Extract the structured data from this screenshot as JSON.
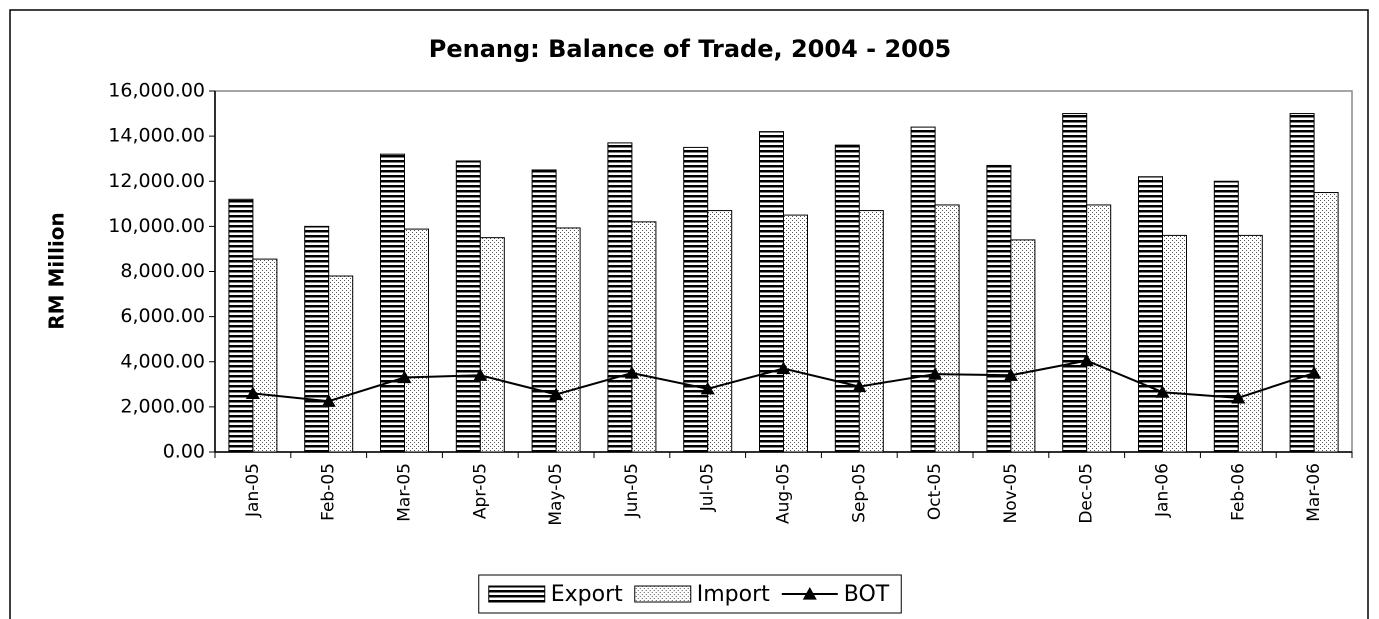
{
  "chart_data": {
    "type": "bar",
    "title": "Penang: Balance of Trade, 2004 - 2005",
    "y_label": "RM Million",
    "categories": [
      "Jan-05",
      "Feb-05",
      "Mar-05",
      "Apr-05",
      "May-05",
      "Jun-05",
      "Jul-05",
      "Aug-05",
      "Sep-05",
      "Oct-05",
      "Nov-05",
      "Dec-05",
      "Jan-06",
      "Feb-06",
      "Mar-06"
    ],
    "series": [
      {
        "name": "Export",
        "type": "bar",
        "color": "#000000",
        "values": [
          11200,
          10000,
          13200,
          12900,
          12500,
          13700,
          13500,
          14200,
          13600,
          14400,
          12700,
          15000,
          12200,
          12000,
          15000
        ]
      },
      {
        "name": "Import",
        "type": "bar",
        "color": "#000000",
        "values": [
          8550,
          7800,
          9880,
          9500,
          9930,
          10200,
          10700,
          10500,
          10700,
          10950,
          9400,
          10950,
          9600,
          9600,
          11500
        ]
      },
      {
        "name": "BOT",
        "type": "line",
        "color": "#000000",
        "values": [
          2600,
          2250,
          3300,
          3400,
          2550,
          3500,
          2800,
          3700,
          2900,
          3450,
          3400,
          4050,
          2650,
          2400,
          3500
        ]
      }
    ],
    "ylim": [
      0,
      16000
    ],
    "yticks": [
      {
        "value": 0,
        "label": "0.00"
      },
      {
        "value": 2000,
        "label": "2,000.00"
      },
      {
        "value": 4000,
        "label": "4,000.00"
      },
      {
        "value": 6000,
        "label": "6,000.00"
      },
      {
        "value": 8000,
        "label": "8,000.00"
      },
      {
        "value": 10000,
        "label": "10,000.00"
      },
      {
        "value": 12000,
        "label": "12,000.00"
      },
      {
        "value": 14000,
        "label": "14,000.00"
      },
      {
        "value": 16000,
        "label": "16,000.00"
      }
    ],
    "legend": "bottom",
    "grid": false
  }
}
